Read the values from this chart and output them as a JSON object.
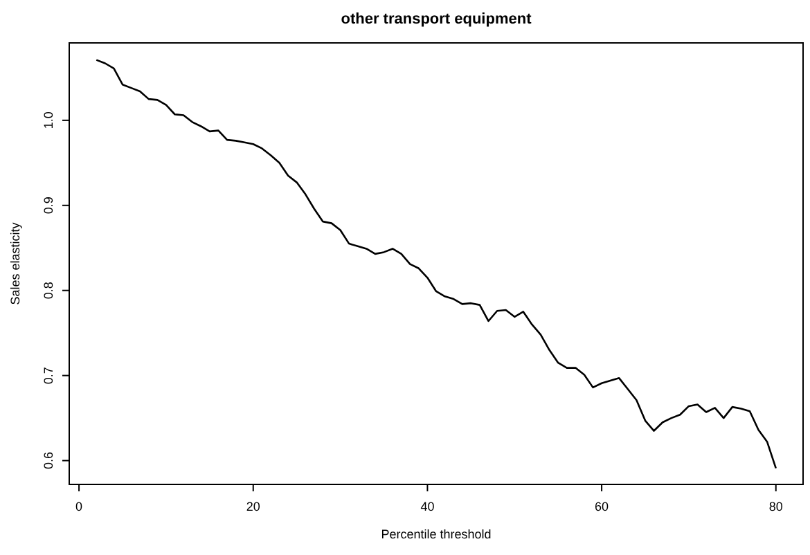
{
  "chart_data": {
    "type": "line",
    "title": "other transport equipment",
    "xlabel": "Percentile threshold",
    "ylabel": "Sales elasticity",
    "x": [
      2,
      3,
      4,
      5,
      6,
      7,
      8,
      9,
      10,
      11,
      12,
      13,
      14,
      15,
      16,
      17,
      18,
      19,
      20,
      21,
      22,
      23,
      24,
      25,
      26,
      27,
      28,
      29,
      30,
      31,
      32,
      33,
      34,
      35,
      36,
      37,
      38,
      39,
      40,
      41,
      42,
      43,
      44,
      45,
      46,
      47,
      48,
      49,
      50,
      51,
      52,
      53,
      54,
      55,
      56,
      57,
      58,
      59,
      60,
      61,
      62,
      63,
      64,
      65,
      66,
      67,
      68,
      69,
      70,
      71,
      72,
      73,
      74,
      75,
      76,
      77,
      78,
      79,
      80
    ],
    "series": [
      {
        "color": "#000000",
        "values": [
          1.071,
          1.067,
          1.061,
          1.042,
          1.038,
          1.034,
          1.025,
          1.024,
          1.018,
          1.007,
          1.006,
          0.998,
          0.993,
          0.987,
          0.988,
          0.977,
          0.976,
          0.974,
          0.972,
          0.967,
          0.959,
          0.95,
          0.935,
          0.927,
          0.913,
          0.896,
          0.881,
          0.879,
          0.871,
          0.855,
          0.852,
          0.849,
          0.843,
          0.845,
          0.849,
          0.843,
          0.831,
          0.826,
          0.815,
          0.799,
          0.793,
          0.79,
          0.784,
          0.785,
          0.783,
          0.764,
          0.776,
          0.777,
          0.769,
          0.775,
          0.76,
          0.748,
          0.73,
          0.715,
          0.709,
          0.709,
          0.701,
          0.686,
          0.691,
          0.694,
          0.697,
          0.684,
          0.671,
          0.647,
          0.635,
          0.645,
          0.65,
          0.654,
          0.664,
          0.666,
          0.657,
          0.662,
          0.65,
          0.663,
          0.661,
          0.658,
          0.636,
          0.622,
          0.591
        ]
      }
    ],
    "xlim": [
      -1.12,
      83.12
    ],
    "ylim": [
      0.572,
      1.091
    ],
    "xticks": [
      0,
      20,
      40,
      60,
      80
    ],
    "yticks": [
      {
        "value": 0.6,
        "label": "0.6"
      },
      {
        "value": 0.7,
        "label": "0.7"
      },
      {
        "value": 0.8,
        "label": "0.8"
      },
      {
        "value": 0.9,
        "label": "0.9"
      },
      {
        "value": 1.0,
        "label": "1.0"
      }
    ],
    "grid": false,
    "marker": "none",
    "line_style": "solid"
  }
}
